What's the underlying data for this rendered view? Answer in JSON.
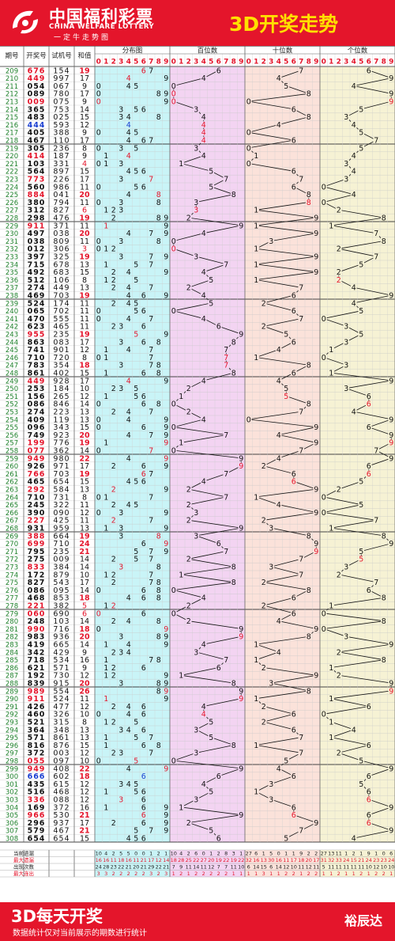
{
  "header": {
    "brand_cn": "中国福利彩票",
    "brand_en": "CHINA WELFARE LOTTERY",
    "slogan": "一定牛走势图",
    "title": "3D开奖走势"
  },
  "footer": {
    "title": "3D每天开奖",
    "note": "数据统计仅对当前展示的期数进行统计",
    "author": "裕辰达"
  },
  "colors": {
    "brand_red": "#e4152b",
    "title_yellow": "#ffe000",
    "dist_bg": "#c9f4f7",
    "hundreds_bg": "#f3d4f2",
    "tens_bg": "#fbe2da",
    "units_bg": "#f6f2d4",
    "highlight_red": "#e4152b",
    "highlight_blue": "#1a3fd1"
  },
  "chart_data": {
    "type": "table",
    "title": "3D开奖走势",
    "columns": [
      "期号",
      "开奖号",
      "试机号",
      "和值"
    ],
    "section_headers": [
      "分布图",
      "百位数",
      "十位数",
      "个位数"
    ],
    "digit_headers": [
      "0",
      "1",
      "2",
      "3",
      "4",
      "5",
      "6",
      "7",
      "8",
      "9"
    ],
    "rows": [
      [
        "209",
        "676",
        "154",
        "19"
      ],
      [
        "210",
        "449",
        "997",
        "17"
      ],
      [
        "211",
        "054",
        "067",
        "9"
      ],
      [
        "212",
        "089",
        "780",
        "17"
      ],
      [
        "213",
        "009",
        "075",
        "9"
      ],
      [
        "214",
        "365",
        "753",
        "14"
      ],
      [
        "215",
        "483",
        "025",
        "15"
      ],
      [
        "216",
        "444",
        "593",
        "12"
      ],
      [
        "217",
        "405",
        "388",
        "9"
      ],
      [
        "218",
        "467",
        "110",
        "17"
      ],
      [
        "219",
        "305",
        "236",
        "8"
      ],
      [
        "220",
        "414",
        "187",
        "9"
      ],
      [
        "221",
        "103",
        "331",
        "4"
      ],
      [
        "222",
        "564",
        "897",
        "15"
      ],
      [
        "223",
        "773",
        "226",
        "17"
      ],
      [
        "224",
        "560",
        "986",
        "11"
      ],
      [
        "225",
        "884",
        "041",
        "20"
      ],
      [
        "226",
        "380",
        "794",
        "11"
      ],
      [
        "227",
        "312",
        "827",
        "6"
      ],
      [
        "228",
        "298",
        "476",
        "19"
      ],
      [
        "229",
        "911",
        "371",
        "11"
      ],
      [
        "230",
        "497",
        "038",
        "20"
      ],
      [
        "231",
        "038",
        "809",
        "11"
      ],
      [
        "232",
        "012",
        "306",
        "3"
      ],
      [
        "233",
        "397",
        "325",
        "19"
      ],
      [
        "234",
        "715",
        "678",
        "13"
      ],
      [
        "235",
        "492",
        "683",
        "15"
      ],
      [
        "236",
        "512",
        "106",
        "8"
      ],
      [
        "237",
        "274",
        "449",
        "13"
      ],
      [
        "238",
        "469",
        "703",
        "19"
      ],
      [
        "239",
        "524",
        "174",
        "11"
      ],
      [
        "240",
        "065",
        "702",
        "11"
      ],
      [
        "241",
        "470",
        "555",
        "11"
      ],
      [
        "242",
        "623",
        "465",
        "11"
      ],
      [
        "243",
        "955",
        "235",
        "19"
      ],
      [
        "244",
        "863",
        "083",
        "17"
      ],
      [
        "245",
        "741",
        "901",
        "12"
      ],
      [
        "246",
        "710",
        "720",
        "8"
      ],
      [
        "247",
        "783",
        "354",
        "18"
      ],
      [
        "248",
        "861",
        "402",
        "15"
      ],
      [
        "249",
        "449",
        "928",
        "17"
      ],
      [
        "250",
        "253",
        "184",
        "10"
      ],
      [
        "251",
        "156",
        "265",
        "12"
      ],
      [
        "252",
        "086",
        "846",
        "14"
      ],
      [
        "253",
        "274",
        "223",
        "13"
      ],
      [
        "254",
        "409",
        "119",
        "13"
      ],
      [
        "255",
        "096",
        "343",
        "15"
      ],
      [
        "256",
        "749",
        "923",
        "20"
      ],
      [
        "257",
        "199",
        "776",
        "19"
      ],
      [
        "258",
        "077",
        "362",
        "14"
      ],
      [
        "259",
        "949",
        "980",
        "22"
      ],
      [
        "260",
        "926",
        "971",
        "17"
      ],
      [
        "261",
        "766",
        "703",
        "19"
      ],
      [
        "262",
        "465",
        "654",
        "15"
      ],
      [
        "263",
        "292",
        "584",
        "13"
      ],
      [
        "264",
        "710",
        "731",
        "8"
      ],
      [
        "265",
        "245",
        "322",
        "11"
      ],
      [
        "266",
        "390",
        "090",
        "12"
      ],
      [
        "267",
        "227",
        "425",
        "11"
      ],
      [
        "268",
        "931",
        "959",
        "13"
      ],
      [
        "269",
        "388",
        "664",
        "19"
      ],
      [
        "270",
        "699",
        "710",
        "24"
      ],
      [
        "271",
        "795",
        "235",
        "21"
      ],
      [
        "272",
        "275",
        "009",
        "14"
      ],
      [
        "273",
        "833",
        "384",
        "14"
      ],
      [
        "274",
        "172",
        "879",
        "10"
      ],
      [
        "275",
        "827",
        "543",
        "17"
      ],
      [
        "276",
        "086",
        "095",
        "14"
      ],
      [
        "277",
        "468",
        "853",
        "18"
      ],
      [
        "278",
        "221",
        "382",
        "5"
      ],
      [
        "279",
        "060",
        "690",
        "6"
      ],
      [
        "280",
        "248",
        "103",
        "14"
      ],
      [
        "281",
        "990",
        "716",
        "18"
      ],
      [
        "282",
        "983",
        "936",
        "20"
      ],
      [
        "283",
        "419",
        "665",
        "14"
      ],
      [
        "284",
        "342",
        "429",
        "9"
      ],
      [
        "285",
        "718",
        "534",
        "16"
      ],
      [
        "286",
        "621",
        "571",
        "9"
      ],
      [
        "287",
        "192",
        "730",
        "12"
      ],
      [
        "288",
        "839",
        "915",
        "20"
      ],
      [
        "289",
        "989",
        "554",
        "26"
      ],
      [
        "290",
        "911",
        "524",
        "11"
      ],
      [
        "291",
        "426",
        "477",
        "12"
      ],
      [
        "292",
        "460",
        "326",
        "10"
      ],
      [
        "293",
        "521",
        "315",
        "8"
      ],
      [
        "294",
        "364",
        "348",
        "13"
      ],
      [
        "295",
        "571",
        "861",
        "13"
      ],
      [
        "296",
        "816",
        "876",
        "15"
      ],
      [
        "297",
        "372",
        "003",
        "12"
      ],
      [
        "298",
        "055",
        "097",
        "10"
      ],
      [
        "299",
        "949",
        "408",
        "22"
      ],
      [
        "300",
        "666",
        "602",
        "18"
      ],
      [
        "301",
        "435",
        "615",
        "12"
      ],
      [
        "302",
        "516",
        "468",
        "12"
      ],
      [
        "303",
        "336",
        "088",
        "12"
      ],
      [
        "304",
        "169",
        "372",
        "16"
      ],
      [
        "305",
        "966",
        "530",
        "21"
      ],
      [
        "306",
        "296",
        "937",
        "17"
      ],
      [
        "307",
        "579",
        "467",
        "21"
      ],
      [
        "308",
        "654",
        "654",
        "15"
      ]
    ],
    "stats_labels": [
      "当前遗漏",
      "最大遗漏",
      "出现次数",
      "最大连出"
    ],
    "stats": {
      "dist": [
        [
          10,
          4,
          2,
          5,
          5,
          0,
          0,
          1,
          2,
          1
        ],
        [
          16,
          16,
          11,
          18,
          16,
          11,
          21,
          17,
          12,
          14
        ],
        [
          24,
          28,
          23,
          22,
          21,
          20,
          21,
          29,
          22,
          21
        ],
        [
          3,
          3,
          2,
          2,
          2,
          2,
          2,
          3,
          2,
          3
        ]
      ],
      "hundreds": [
        [
          10,
          4,
          2,
          6,
          0,
          1,
          2,
          8,
          3,
          1
        ],
        [
          18,
          28,
          25,
          22,
          27,
          20,
          19,
          22,
          19,
          22
        ],
        [
          7,
          9,
          11,
          14,
          11,
          12,
          7,
          7,
          11,
          10
        ],
        [
          1,
          2,
          1,
          2,
          2,
          2,
          2,
          2,
          1,
          1
        ]
      ],
      "tens": [
        [
          27,
          6,
          1,
          5,
          0,
          1,
          1,
          9,
          2,
          2
        ],
        [
          32,
          16,
          13,
          30,
          16,
          11,
          17,
          18,
          20,
          17
        ],
        [
          6,
          14,
          15,
          6,
          14,
          12,
          10,
          11,
          12,
          11
        ],
        [
          1,
          1,
          3,
          1,
          1,
          2,
          2,
          1,
          2,
          2
        ]
      ],
      "units": [
        [
          27,
          13,
          11,
          1,
          2,
          1,
          9,
          1,
          0,
          6
        ],
        [
          31,
          32,
          33,
          24,
          15,
          21,
          24,
          23,
          23,
          24
        ],
        [
          5,
          11,
          11,
          11,
          11,
          11,
          10,
          12,
          10,
          10
        ],
        [
          1,
          1,
          2,
          1,
          1,
          2,
          1,
          2,
          2,
          1
        ]
      ]
    }
  }
}
